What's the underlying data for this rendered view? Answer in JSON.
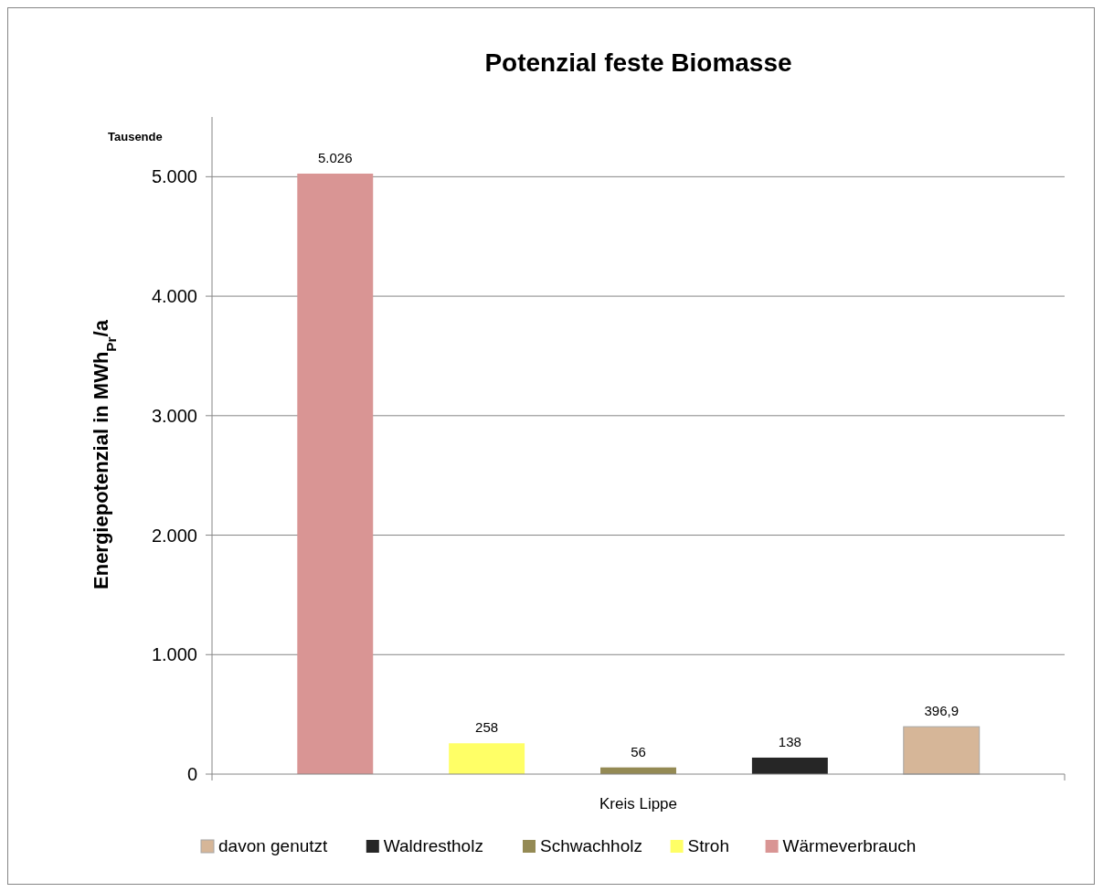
{
  "chart_data": {
    "type": "bar",
    "title": "Potenzial feste Biomasse",
    "xlabel": "Kreis Lippe",
    "ylabel": "Energiepotenzial in MWh$_{Pr}$/a",
    "annotations": [
      "Tausende"
    ],
    "categories": [
      null
    ],
    "series": [
      {
        "name": "Wärmeverbrauch",
        "color": "#d99594",
        "values": [
          5026
        ],
        "value_labels": [
          "5.026"
        ]
      },
      {
        "name": "Stroh",
        "color": "#ffff66",
        "values": [
          258
        ],
        "value_labels": [
          "258"
        ]
      },
      {
        "name": "Schwachholz",
        "color": "#948a54",
        "values": [
          56
        ],
        "value_labels": [
          "56"
        ]
      },
      {
        "name": "Waldrestholz",
        "color": "#262626",
        "values": [
          138
        ],
        "value_labels": [
          "138"
        ]
      },
      {
        "name": "davon genutzt",
        "color": "#d6b698",
        "values": [
          396.9
        ],
        "value_labels": [
          "396,9"
        ]
      }
    ],
    "ylim": [
      0,
      5500
    ],
    "yticks": [
      0,
      {
        "value": 1000,
        "label": "1.000"
      },
      {
        "value": 2000,
        "label": "2.000"
      },
      {
        "value": 3000,
        "label": "3.000"
      },
      {
        "value": 4000,
        "label": "4.000"
      },
      {
        "value": 5000,
        "label": "5.000"
      }
    ],
    "grid": "y",
    "legend": "bottom"
  }
}
